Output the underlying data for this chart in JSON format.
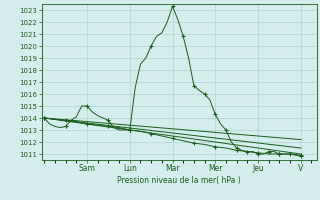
{
  "bg_color": "#d4eeed",
  "grid_color": "#a8cccc",
  "line_color": "#1a5c1a",
  "xlabel": "Pression niveau de la mer( hPa )",
  "ylim": [
    1010.5,
    1023.5
  ],
  "yticks": [
    1011,
    1012,
    1013,
    1014,
    1015,
    1016,
    1017,
    1018,
    1019,
    1020,
    1021,
    1022,
    1023
  ],
  "x_day_labels": [
    "Sam",
    "Lun",
    "Mar",
    "Mer",
    "Jeu",
    "V"
  ],
  "x_day_positions": [
    8,
    16,
    24,
    32,
    40,
    48
  ],
  "xlim": [
    -0.5,
    51
  ],
  "line1_x": [
    0,
    1,
    2,
    3,
    4,
    5,
    6,
    7,
    8,
    9,
    10,
    11,
    12,
    13,
    14,
    15,
    16,
    17,
    18,
    19,
    20,
    21,
    22,
    23,
    24,
    25,
    26,
    27,
    28,
    29,
    30,
    31,
    32,
    33,
    34,
    35,
    36,
    37,
    38,
    39,
    40,
    41,
    42,
    43,
    44,
    45,
    46,
    47,
    48
  ],
  "line1_y": [
    1014.0,
    1013.5,
    1013.3,
    1013.2,
    1013.3,
    1013.8,
    1014.1,
    1015.0,
    1015.0,
    1014.5,
    1014.2,
    1014.0,
    1013.8,
    1013.2,
    1013.0,
    1013.0,
    1013.0,
    1016.5,
    1018.5,
    1019.0,
    1020.0,
    1020.8,
    1021.1,
    1022.0,
    1023.3,
    1022.2,
    1020.8,
    1019.0,
    1016.7,
    1016.3,
    1016.0,
    1015.5,
    1014.3,
    1013.5,
    1013.0,
    1012.0,
    1011.5,
    1011.3,
    1011.2,
    1011.2,
    1011.0,
    1011.0,
    1011.2,
    1011.2,
    1011.0,
    1011.0,
    1011.0,
    1010.9,
    1010.8
  ],
  "line1_markers_x": [
    0,
    4,
    8,
    12,
    16,
    20,
    24,
    26,
    28,
    30,
    32,
    34,
    36,
    38,
    40,
    42,
    44,
    46,
    48
  ],
  "line1_markers_y": [
    1014.0,
    1013.3,
    1015.0,
    1013.8,
    1013.0,
    1020.0,
    1023.3,
    1020.8,
    1016.7,
    1016.0,
    1014.3,
    1013.0,
    1011.5,
    1011.2,
    1011.0,
    1011.2,
    1011.0,
    1011.0,
    1010.8
  ],
  "line2_x": [
    0,
    2,
    4,
    6,
    8,
    10,
    12,
    14,
    16,
    18,
    20,
    22,
    24,
    26,
    28,
    30,
    32,
    34,
    36,
    38,
    40,
    42,
    44,
    46,
    48
  ],
  "line2_y": [
    1014.0,
    1013.9,
    1013.8,
    1013.7,
    1013.5,
    1013.4,
    1013.3,
    1013.2,
    1013.0,
    1012.9,
    1012.7,
    1012.5,
    1012.3,
    1012.1,
    1011.9,
    1011.8,
    1011.6,
    1011.5,
    1011.3,
    1011.2,
    1011.1,
    1011.0,
    1011.0,
    1011.0,
    1010.9
  ],
  "line2_markers_x": [
    0,
    4,
    8,
    12,
    16,
    20,
    24,
    28,
    32,
    36,
    40,
    44,
    48
  ],
  "line2_markers_y": [
    1014.0,
    1013.8,
    1013.5,
    1013.3,
    1013.0,
    1012.7,
    1012.3,
    1011.9,
    1011.6,
    1011.3,
    1011.1,
    1011.0,
    1010.9
  ],
  "line3_x": [
    0,
    48
  ],
  "line3_y": [
    1014.0,
    1011.0
  ],
  "line4_x": [
    0,
    48
  ],
  "line4_y": [
    1014.0,
    1011.5
  ],
  "line5_x": [
    0,
    48
  ],
  "line5_y": [
    1014.0,
    1012.2
  ]
}
